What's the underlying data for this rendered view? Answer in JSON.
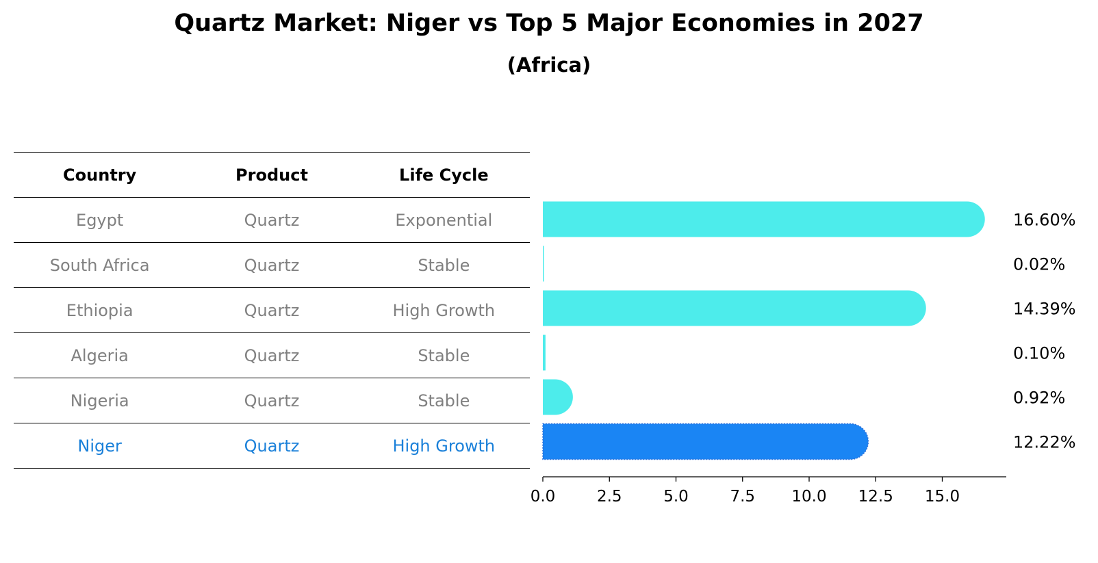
{
  "title": "Quartz Market: Niger vs Top 5 Major Economies in 2027",
  "subtitle": "(Africa)",
  "table": {
    "headers": [
      "Country",
      "Product",
      "Life Cycle"
    ],
    "rows": [
      {
        "country": "Egypt",
        "product": "Quartz",
        "life_cycle": "Exponential",
        "highlight": false
      },
      {
        "country": "South Africa",
        "product": "Quartz",
        "life_cycle": "Stable",
        "highlight": false
      },
      {
        "country": "Ethiopia",
        "product": "Quartz",
        "life_cycle": "High Growth",
        "highlight": false
      },
      {
        "country": "Algeria",
        "product": "Quartz",
        "life_cycle": "Stable",
        "highlight": false
      },
      {
        "country": "Nigeria",
        "product": "Quartz",
        "life_cycle": "Stable",
        "highlight": false
      },
      {
        "country": "Niger",
        "product": "Quartz",
        "life_cycle": "High Growth",
        "highlight": true
      }
    ]
  },
  "colors": {
    "bar": "#4deceb",
    "highlight": "#1a85f4",
    "text_gray": "#808080",
    "text_highlight": "#1a80d9"
  },
  "chart_data": {
    "type": "bar",
    "orientation": "horizontal",
    "title": "Quartz Market: Niger vs Top 5 Major Economies in 2027",
    "subtitle": "(Africa)",
    "categories": [
      "Egypt",
      "South Africa",
      "Ethiopia",
      "Algeria",
      "Nigeria",
      "Niger"
    ],
    "values": [
      16.6,
      0.02,
      14.39,
      0.1,
      0.92,
      12.22
    ],
    "value_labels": [
      "16.60%",
      "0.02%",
      "14.39%",
      "0.10%",
      "0.92%",
      "12.22%"
    ],
    "highlight_index": 5,
    "xlim": [
      0,
      17.5
    ],
    "xticks": [
      0.0,
      2.5,
      5.0,
      7.5,
      10.0,
      12.5,
      15.0
    ],
    "xtick_labels": [
      "0.0",
      "2.5",
      "5.0",
      "7.5",
      "10.0",
      "12.5",
      "15.0"
    ],
    "xlabel": "",
    "ylabel": "",
    "grid": false
  }
}
